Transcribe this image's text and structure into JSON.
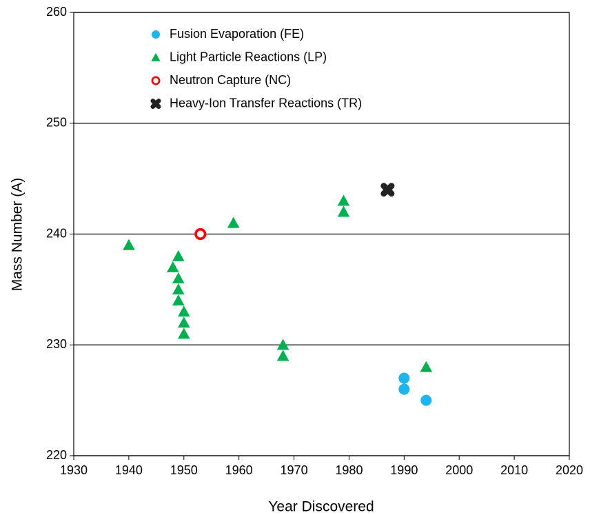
{
  "chart_data": {
    "type": "scatter",
    "xlabel": "Year Discovered",
    "ylabel": "Mass Number (A)",
    "xlim": [
      1930,
      2020
    ],
    "xticks": [
      1930,
      1940,
      1950,
      1960,
      1970,
      1980,
      1990,
      2000,
      2010,
      2020
    ],
    "ylim": [
      220,
      260
    ],
    "yticks": [
      220,
      230,
      240,
      250,
      260
    ],
    "grid": true,
    "legend": "upper-center",
    "series": [
      {
        "name": "Fusion Evaporation (FE)",
        "color": "#1eb4ec",
        "marker": "circle",
        "x": [
          1990,
          1990,
          1994
        ],
        "y": [
          227,
          226,
          225
        ]
      },
      {
        "name": "Light Particle Reactions (LP)",
        "color": "#00b050",
        "marker": "triangle",
        "x": [
          1940,
          1948,
          1949,
          1949,
          1949,
          1949,
          1950,
          1950,
          1950,
          1959,
          1968,
          1968,
          1979,
          1979,
          1994
        ],
        "y": [
          239,
          237,
          238,
          236,
          235,
          234,
          233,
          232,
          231,
          241,
          230,
          229,
          243,
          242,
          228
        ]
      },
      {
        "name": "Neutron Capture (NC)",
        "color": "#ff0000",
        "marker": "open-circle",
        "x": [
          1953
        ],
        "y": [
          240
        ]
      },
      {
        "name": "Heavy-Ion Transfer Reactions (TR)",
        "color": "#222222",
        "marker": "x",
        "x": [
          1987
        ],
        "y": [
          244
        ]
      }
    ]
  }
}
